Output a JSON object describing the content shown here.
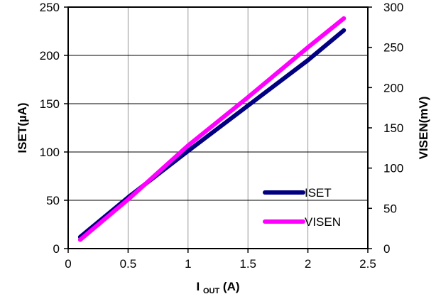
{
  "chart_data": {
    "type": "line",
    "title": "",
    "xlabel": {
      "main": "I",
      "sub": "OUT",
      "suffix": "(A)"
    },
    "ylabel_left": "ISET(µA)",
    "ylabel_right": "VISEN(mV)",
    "xlim": [
      0,
      2.5
    ],
    "ylim_left": [
      0,
      250
    ],
    "ylim_right": [
      0,
      300
    ],
    "x_ticks": [
      0,
      0.5,
      1,
      1.5,
      2,
      2.5
    ],
    "x_tick_labels": [
      "0",
      "0.5",
      "1",
      "1.5",
      "2",
      "2.5"
    ],
    "y_left_ticks": [
      0,
      50,
      100,
      150,
      200,
      250
    ],
    "y_left_tick_labels": [
      "0",
      "50",
      "100",
      "150",
      "200",
      "250"
    ],
    "y_right_ticks": [
      0,
      50,
      100,
      150,
      200,
      250,
      300
    ],
    "y_right_tick_labels": [
      "0",
      "50",
      "100",
      "150",
      "200",
      "250",
      "300"
    ],
    "grid": true,
    "legend_position": "bottom-right",
    "series": [
      {
        "name": "ISET",
        "axis": "left",
        "color": "#000080",
        "x": [
          0.1,
          0.5,
          1.0,
          1.5,
          2.0,
          2.3
        ],
        "y": [
          12,
          53,
          101,
          148,
          195,
          226
        ]
      },
      {
        "name": "VISEN",
        "axis": "right",
        "color": "#FF00FF",
        "x": [
          0.1,
          0.5,
          1.0,
          1.5,
          2.0,
          2.3
        ],
        "y": [
          11,
          61,
          128,
          188,
          250,
          286
        ]
      }
    ]
  }
}
